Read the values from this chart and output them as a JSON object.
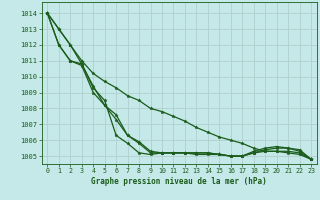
{
  "title": "Graphe pression niveau de la mer (hPa)",
  "background_color": "#c5e8e8",
  "grid_color": "#b0d0d0",
  "line_color": "#1a5c1a",
  "xlim": [
    -0.5,
    23.5
  ],
  "ylim": [
    1004.5,
    1014.7
  ],
  "yticks": [
    1005,
    1006,
    1007,
    1008,
    1009,
    1010,
    1011,
    1012,
    1013,
    1014
  ],
  "xticks": [
    0,
    1,
    2,
    3,
    4,
    5,
    6,
    7,
    8,
    9,
    10,
    11,
    12,
    13,
    14,
    15,
    16,
    17,
    18,
    19,
    20,
    21,
    22,
    23
  ],
  "series": [
    [
      1014.0,
      1013.0,
      1012.0,
      1011.0,
      1010.2,
      1009.7,
      1009.3,
      1008.8,
      1008.5,
      1008.0,
      1007.8,
      1007.5,
      1007.2,
      1006.8,
      1006.5,
      1006.2,
      1006.0,
      1005.8,
      1005.5,
      1005.3,
      1005.3,
      1005.2,
      1005.1,
      1004.8
    ],
    [
      1014.0,
      1013.0,
      1012.0,
      1010.8,
      1009.4,
      1008.2,
      1007.3,
      1006.3,
      1005.8,
      1005.2,
      1005.2,
      1005.2,
      1005.2,
      1005.2,
      1005.2,
      1005.1,
      1005.0,
      1005.0,
      1005.2,
      1005.3,
      1005.3,
      1005.3,
      1005.2,
      1004.8
    ],
    [
      1014.0,
      1012.0,
      1011.0,
      1010.7,
      1009.0,
      1008.2,
      1007.6,
      1006.3,
      1005.9,
      1005.3,
      1005.2,
      1005.2,
      1005.2,
      1005.1,
      1005.1,
      1005.1,
      1005.0,
      1005.0,
      1005.3,
      1005.5,
      1005.6,
      1005.5,
      1005.3,
      1004.8
    ],
    [
      1014.0,
      1012.0,
      1011.0,
      1010.8,
      1009.3,
      1008.5,
      1006.3,
      1005.8,
      1005.2,
      1005.1,
      1005.2,
      1005.2,
      1005.2,
      1005.2,
      1005.2,
      1005.1,
      1005.0,
      1005.0,
      1005.2,
      1005.4,
      1005.5,
      1005.5,
      1005.4,
      1004.8
    ]
  ]
}
